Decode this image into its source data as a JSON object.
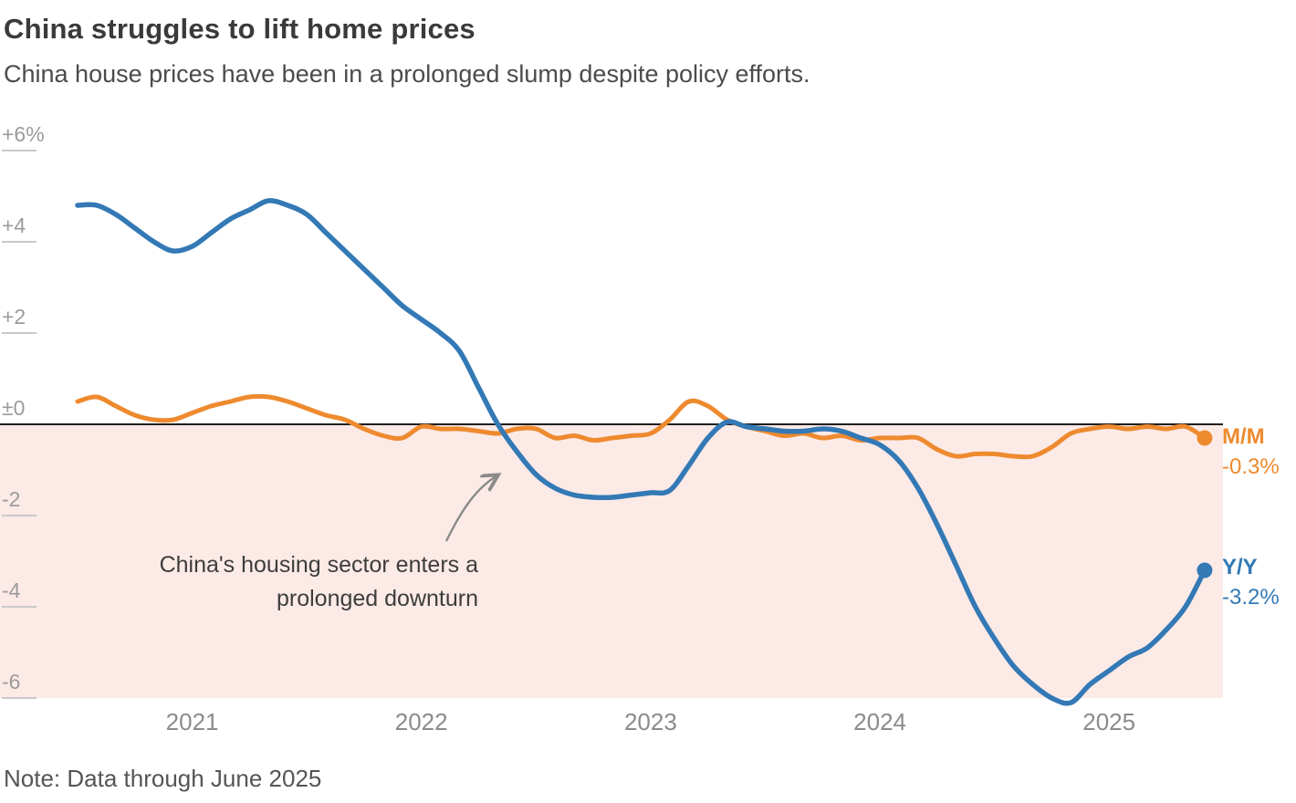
{
  "header": {
    "title": "China struggles to lift home prices",
    "subtitle": "China house prices have been in a prolonged slump despite policy efforts."
  },
  "annotation": {
    "line1": "China's housing sector enters a",
    "line2": "prolonged downturn"
  },
  "legend": {
    "mm": {
      "label": "M/M",
      "value": "-0.3%"
    },
    "yy": {
      "label": "Y/Y",
      "value": "-3.2%"
    }
  },
  "note": "Note: Data through June 2025",
  "colors": {
    "yy": "#3379b5",
    "mm": "#ee8a2e",
    "negative_region": "#fceae7",
    "zero_line": "#1f1f1f",
    "axis_label": "#9b9b9b",
    "year_label": "#8b8b8b",
    "tick_line": "#c9c9c9",
    "arrow": "#8a8a8a"
  },
  "chart_data": {
    "type": "line",
    "title": "China struggles to lift home prices",
    "subtitle": "China house prices have been in a prolonged slump despite policy efforts.",
    "unit": "percent change",
    "frequency": "monthly",
    "x_start": "2020-07",
    "x_end": "2025-06",
    "x_tick_labels": [
      "2021",
      "2022",
      "2023",
      "2024",
      "2025"
    ],
    "y_tick_labels": [
      "+6%",
      "+4",
      "+2",
      "±0",
      "-2",
      "-4",
      "-6"
    ],
    "y_tick_values": [
      6,
      4,
      2,
      0,
      -2,
      -4,
      -6
    ],
    "ylim": [
      -6.6,
      6.4
    ],
    "grid": "left-ticks-only",
    "legend_position": "right-of-line-ends",
    "shaded_region": "below-zero",
    "series": [
      {
        "name": "M/M",
        "end_label": "M/M",
        "end_value": "-0.3%",
        "color": "#ee8a2e",
        "values": [
          0.5,
          0.6,
          0.4,
          0.2,
          0.1,
          0.1,
          0.25,
          0.4,
          0.5,
          0.6,
          0.6,
          0.5,
          0.35,
          0.2,
          0.1,
          -0.1,
          -0.25,
          -0.3,
          -0.05,
          -0.1,
          -0.1,
          -0.15,
          -0.2,
          -0.1,
          -0.1,
          -0.3,
          -0.25,
          -0.35,
          -0.3,
          -0.25,
          -0.2,
          0.1,
          0.5,
          0.4,
          0.1,
          -0.05,
          -0.15,
          -0.25,
          -0.2,
          -0.3,
          -0.25,
          -0.35,
          -0.3,
          -0.3,
          -0.3,
          -0.55,
          -0.7,
          -0.65,
          -0.65,
          -0.7,
          -0.7,
          -0.5,
          -0.2,
          -0.1,
          -0.05,
          -0.1,
          -0.05,
          -0.1,
          -0.05,
          -0.3
        ]
      },
      {
        "name": "Y/Y",
        "end_label": "Y/Y",
        "end_value": "-3.2%",
        "color": "#3379b5",
        "values": [
          4.8,
          4.8,
          4.6,
          4.3,
          4.0,
          3.8,
          3.9,
          4.2,
          4.5,
          4.7,
          4.9,
          4.8,
          4.6,
          4.2,
          3.8,
          3.4,
          3.0,
          2.6,
          2.3,
          2.0,
          1.6,
          0.8,
          0.0,
          -0.6,
          -1.1,
          -1.4,
          -1.55,
          -1.6,
          -1.6,
          -1.55,
          -1.5,
          -1.45,
          -0.9,
          -0.3,
          0.05,
          -0.05,
          -0.1,
          -0.15,
          -0.15,
          -0.1,
          -0.15,
          -0.3,
          -0.45,
          -0.8,
          -1.4,
          -2.2,
          -3.1,
          -4.0,
          -4.7,
          -5.3,
          -5.7,
          -6.0,
          -6.1,
          -5.7,
          -5.4,
          -5.1,
          -4.9,
          -4.5,
          -4.0,
          -3.2
        ]
      }
    ],
    "annotation": {
      "text": "China's housing sector enters a prolonged downturn",
      "points_to": "Y/Y line crossing below zero, mid-2022"
    },
    "note": "Note: Data through June 2025"
  }
}
